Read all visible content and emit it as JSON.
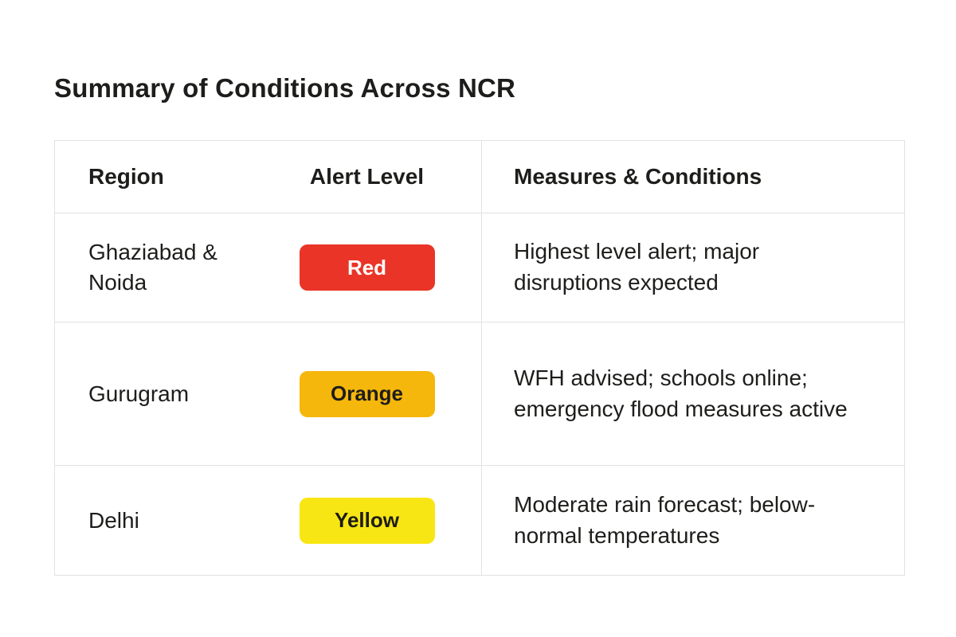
{
  "page": {
    "title": "Summary of Conditions Across NCR"
  },
  "table": {
    "border_color": "#e2e2e2",
    "headers": {
      "region": "Region",
      "alert": "Alert Level",
      "measures": "Measures & Conditions"
    },
    "rows": [
      {
        "region": "Ghaziabad & Noida",
        "alert": {
          "label": "Red",
          "bg": "#e93427",
          "fg": "#ffffff"
        },
        "measures": "Highest level alert; major disruptions expected"
      },
      {
        "region": "Gurugram",
        "alert": {
          "label": "Orange",
          "bg": "#f6b70c",
          "fg": "#1d1d1b"
        },
        "measures": "WFH advised; schools online; emergency flood measures active"
      },
      {
        "region": "Delhi",
        "alert": {
          "label": "Yellow",
          "bg": "#f8e614",
          "fg": "#1d1d1b"
        },
        "measures": "Moderate rain forecast; below-normal temperatures"
      }
    ]
  }
}
